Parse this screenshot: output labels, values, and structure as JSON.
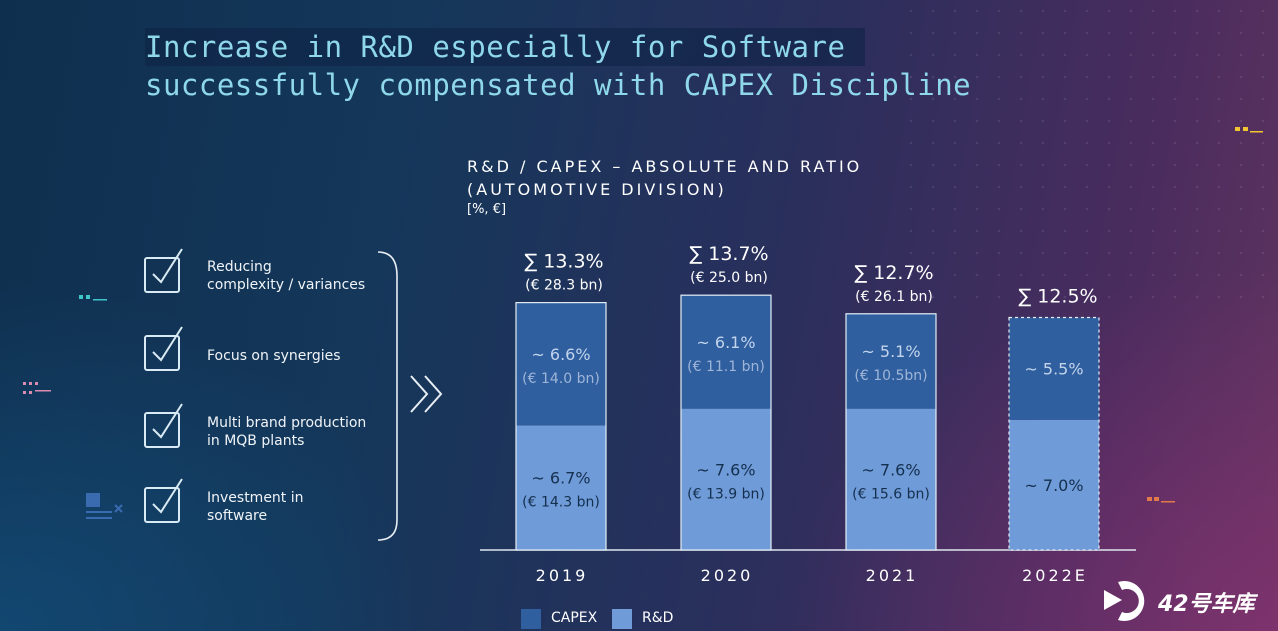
{
  "title": {
    "line1": "Increase in R&D especially for Software",
    "line2": "successfully compensated with CAPEX Discipline"
  },
  "checklist": [
    {
      "line1": "Reducing",
      "line2": "complexity / variances"
    },
    {
      "line1": "Focus on synergies",
      "line2": ""
    },
    {
      "line1": "Multi brand production",
      "line2": "in MQB plants"
    },
    {
      "line1": "Investment in",
      "line2": "software"
    }
  ],
  "logo": {
    "text": "42号车库"
  },
  "chart_data": {
    "type": "bar",
    "stacked": true,
    "title_line1": "R&D / CAPEX – ABSOLUTE AND RATIO",
    "title_line2": "(AUTOMOTIVE DIVISION)",
    "units": "[%, €]",
    "categories": [
      "2019",
      "2020",
      "2021",
      "2022E"
    ],
    "series": [
      {
        "name": "R&D",
        "color": "#6f9bd8",
        "values": [
          6.7,
          7.6,
          7.6,
          7.0
        ],
        "labels": [
          "~ 6.7%",
          "~ 7.6%",
          "~ 7.6%",
          "~ 7.0%"
        ],
        "sublabels": [
          "(€ 14.3 bn)",
          "(€ 13.9 bn)",
          "(€ 15.6 bn)",
          ""
        ]
      },
      {
        "name": "CAPEX",
        "color": "#2f5f9f",
        "values": [
          6.6,
          6.1,
          5.1,
          5.5
        ],
        "labels": [
          "~ 6.6%",
          "~ 6.1%",
          "~ 5.1%",
          "~ 5.5%"
        ],
        "sublabels": [
          "(€ 14.0 bn)",
          "(€ 11.1 bn)",
          "(€ 10.5bn)",
          ""
        ]
      }
    ],
    "totals": [
      "∑ 13.3%",
      "∑ 13.7%",
      "∑ 12.7%",
      "∑ 12.5%"
    ],
    "total_amounts": [
      "(€ 28.3 bn)",
      "(€ 25.0 bn)",
      "(€ 26.1 bn)",
      ""
    ],
    "estimate": [
      false,
      false,
      false,
      true
    ],
    "legend": [
      {
        "name": "CAPEX",
        "color": "#2f5f9f"
      },
      {
        "name": "R&D",
        "color": "#6f9bd8"
      }
    ]
  }
}
